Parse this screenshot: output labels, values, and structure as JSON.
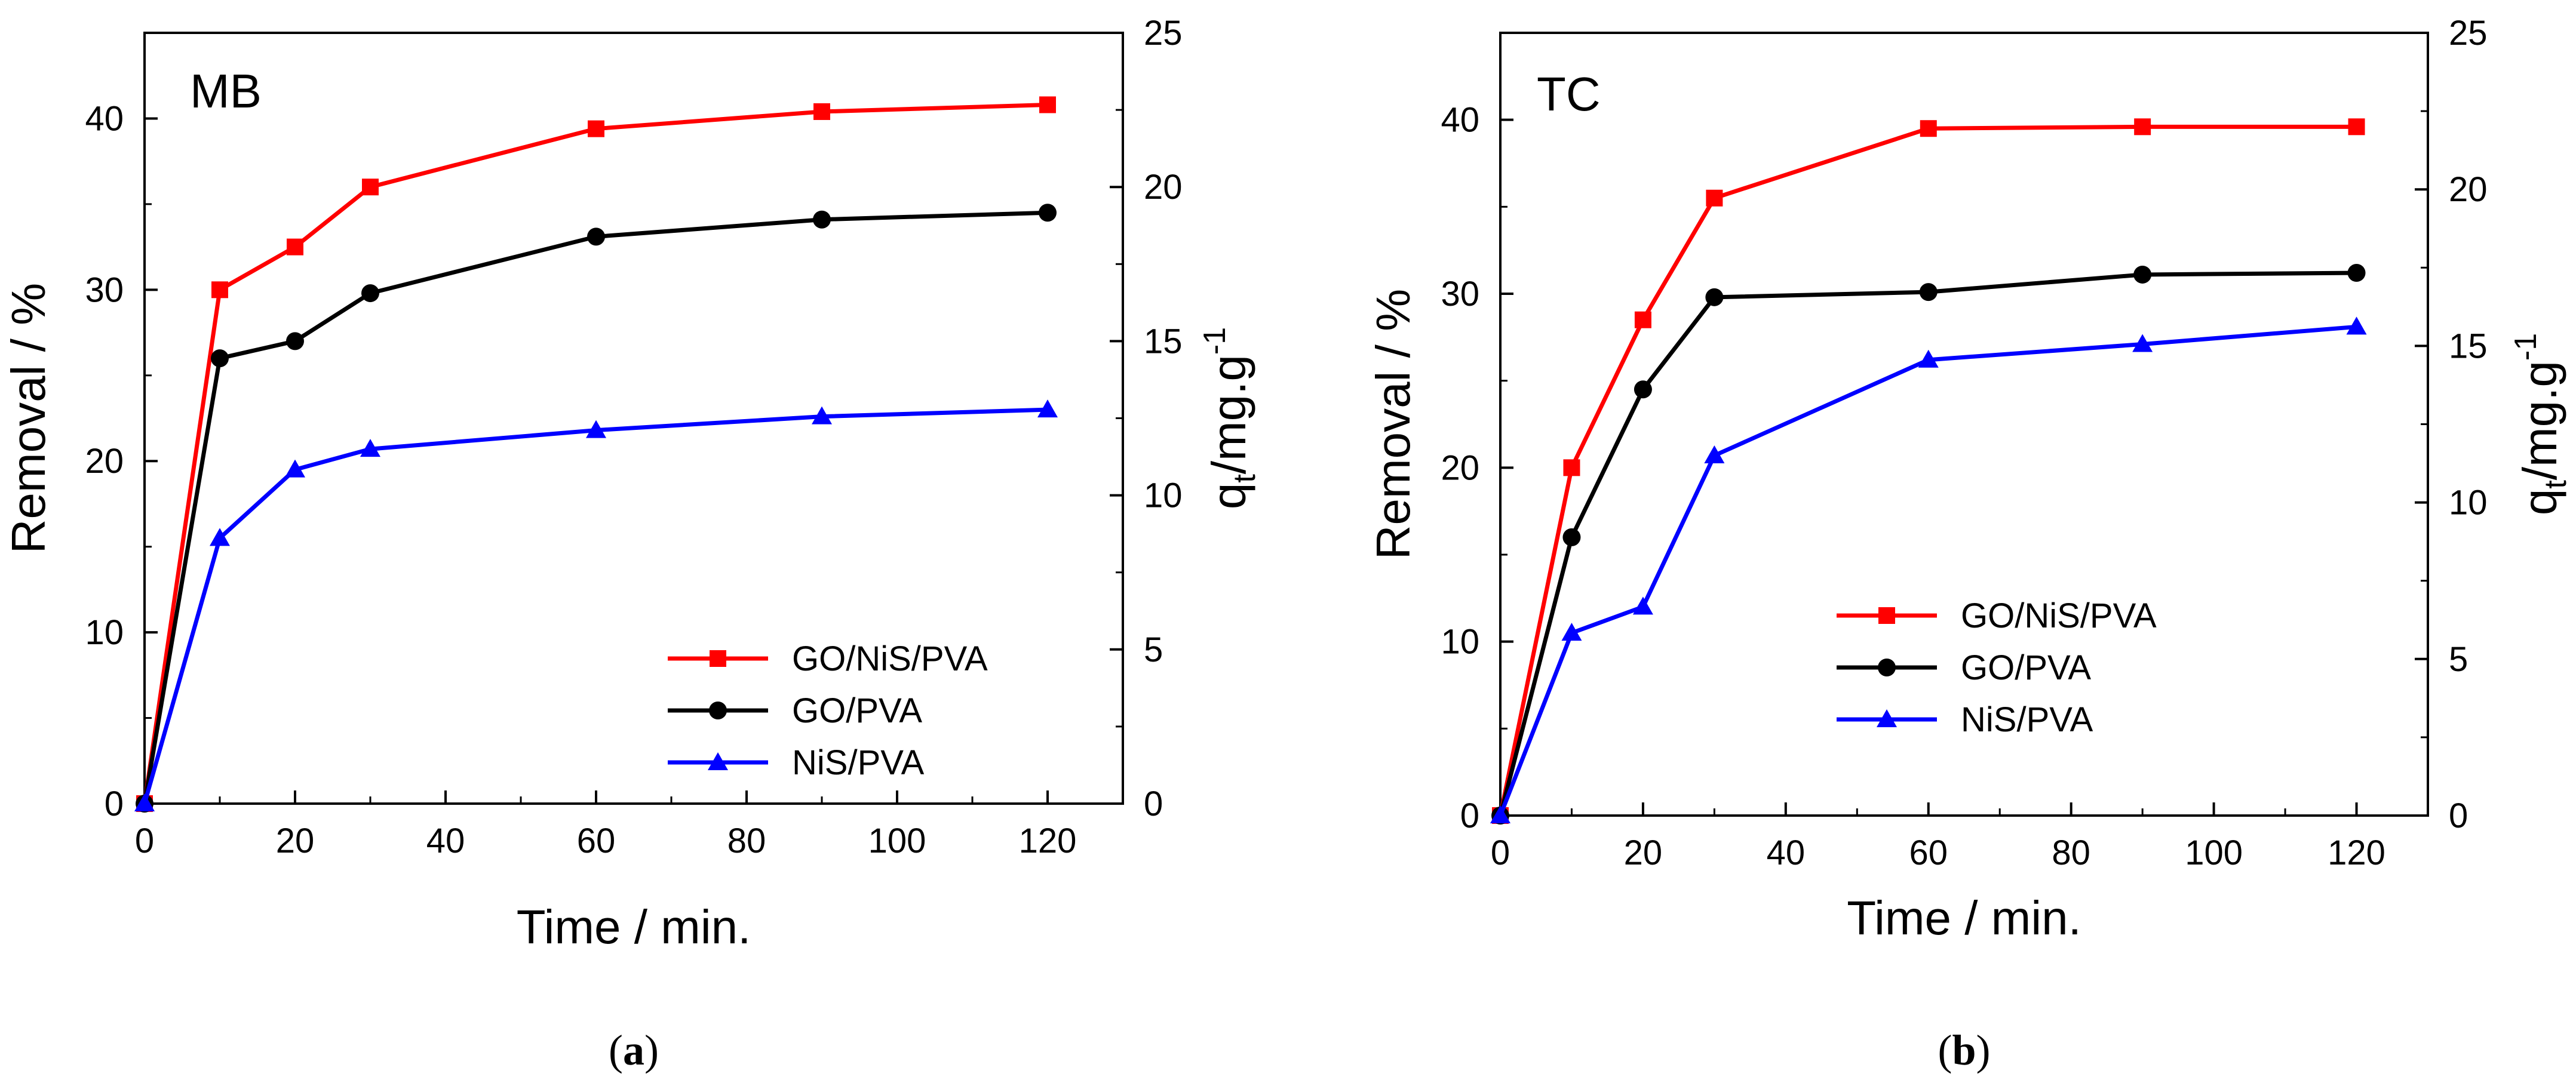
{
  "chart_data": [
    {
      "type": "line",
      "panel_label_parts": [
        "(",
        "a",
        ")"
      ],
      "annotation": "MB",
      "xlabel": "Time / min.",
      "ylabel": "Removal / %",
      "y2label_main": "q",
      "y2label_sub": "t",
      "y2label_rest": "/mg.g",
      "y2label_sup": "-1",
      "xlim": [
        0,
        130
      ],
      "ylim": [
        0,
        45
      ],
      "y2lim": [
        0,
        25
      ],
      "xticks": [
        0,
        20,
        40,
        60,
        80,
        100,
        120
      ],
      "yticks": [
        0,
        10,
        20,
        30,
        40
      ],
      "y2ticks": [
        0,
        5,
        10,
        15,
        20,
        25
      ],
      "x": [
        0,
        10,
        20,
        30,
        60,
        90,
        120
      ],
      "legend_position": "bottom-right",
      "series": [
        {
          "name": "GO/NiS/PVA",
          "color": "#ff0000",
          "marker": "square",
          "values": [
            0,
            30,
            32.5,
            36,
            39.4,
            40.4,
            40.8
          ]
        },
        {
          "name": "GO/PVA",
          "color": "#000000",
          "marker": "circle",
          "values": [
            0,
            26,
            27,
            29.8,
            33.1,
            34.1,
            34.5
          ]
        },
        {
          "name": "NiS/PVA",
          "color": "#0000ff",
          "marker": "triangle",
          "values": [
            0,
            15.5,
            19.5,
            20.7,
            21.8,
            22.6,
            23
          ]
        }
      ]
    },
    {
      "type": "line",
      "panel_label_parts": [
        "(",
        "b",
        ")"
      ],
      "annotation": "TC",
      "xlabel": "Time / min.",
      "ylabel": "Removal / %",
      "y2label_main": "q",
      "y2label_sub": "t",
      "y2label_rest": "/mg.g",
      "y2label_sup": "-1",
      "xlim": [
        0,
        130
      ],
      "ylim": [
        0,
        45
      ],
      "y2lim": [
        0,
        25
      ],
      "xticks": [
        0,
        20,
        40,
        60,
        80,
        100,
        120
      ],
      "yticks": [
        0,
        10,
        20,
        30,
        40
      ],
      "y2ticks": [
        0,
        5,
        10,
        15,
        20,
        25
      ],
      "x": [
        0,
        10,
        20,
        30,
        60,
        90,
        120
      ],
      "legend_position": "center-left",
      "series": [
        {
          "name": "GO/NiS/PVA",
          "color": "#ff0000",
          "marker": "square",
          "values": [
            0,
            20,
            28.5,
            35.5,
            39.5,
            39.6,
            39.6
          ]
        },
        {
          "name": "GO/PVA",
          "color": "#000000",
          "marker": "circle",
          "values": [
            0,
            16,
            24.5,
            29.8,
            30.1,
            31.1,
            31.2
          ]
        },
        {
          "name": "NiS/PVA",
          "color": "#0000ff",
          "marker": "triangle",
          "values": [
            0,
            10.5,
            12,
            20.7,
            26.2,
            27.1,
            28.1
          ]
        }
      ]
    }
  ]
}
